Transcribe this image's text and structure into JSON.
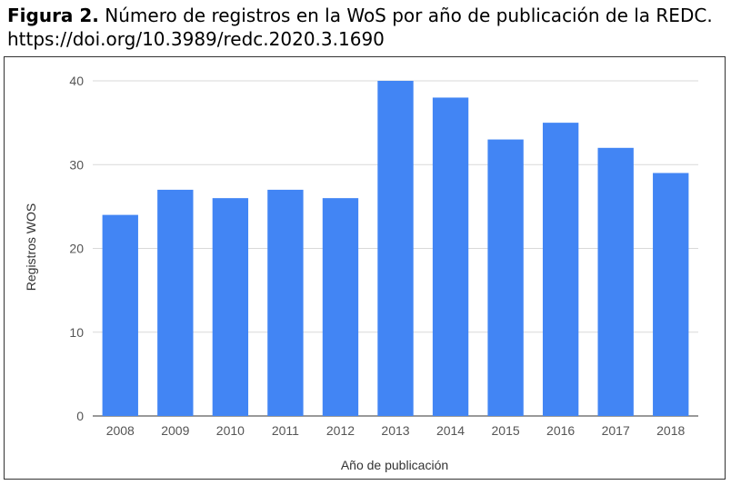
{
  "caption": {
    "figure_label": "Figura 2.",
    "title": "Número de registros en la WoS por año de publicación de la REDC.",
    "doi": "https://doi.org/10.3989/redc.2020.3.1690"
  },
  "chart_data": {
    "type": "bar",
    "categories": [
      "2008",
      "2009",
      "2010",
      "2011",
      "2012",
      "2013",
      "2014",
      "2015",
      "2016",
      "2017",
      "2018"
    ],
    "values": [
      24,
      27,
      26,
      27,
      26,
      40,
      38,
      33,
      35,
      32,
      29
    ],
    "xlabel": "Año de publicación",
    "ylabel": "Registros WOS",
    "ylim": [
      0,
      40
    ],
    "yticks": [
      0,
      10,
      20,
      30,
      40
    ],
    "grid": true,
    "bar_color": "#4285f4",
    "grid_color": "#d9d9d9"
  }
}
